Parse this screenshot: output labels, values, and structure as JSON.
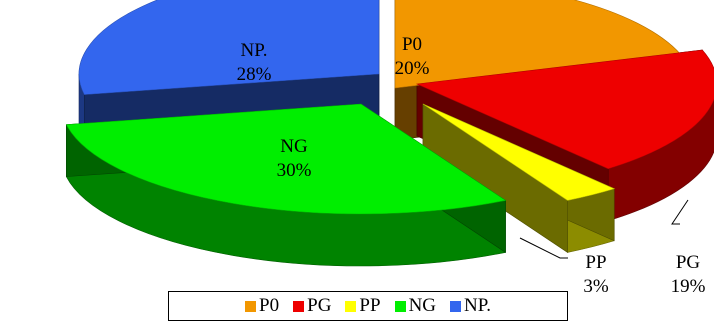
{
  "chart_data": {
    "type": "pie",
    "style": "3d-exploded",
    "categories": [
      "P0",
      "PG",
      "PP",
      "NG",
      "NP."
    ],
    "values": [
      20,
      19,
      3,
      30,
      28
    ],
    "labels": [
      "20%",
      "19%",
      "3%",
      "30%",
      "28%"
    ],
    "colors": [
      "#F29700",
      "#EE0000",
      "#FFFF00",
      "#00EE00",
      "#3366EE"
    ],
    "legend_position": "bottom"
  }
}
